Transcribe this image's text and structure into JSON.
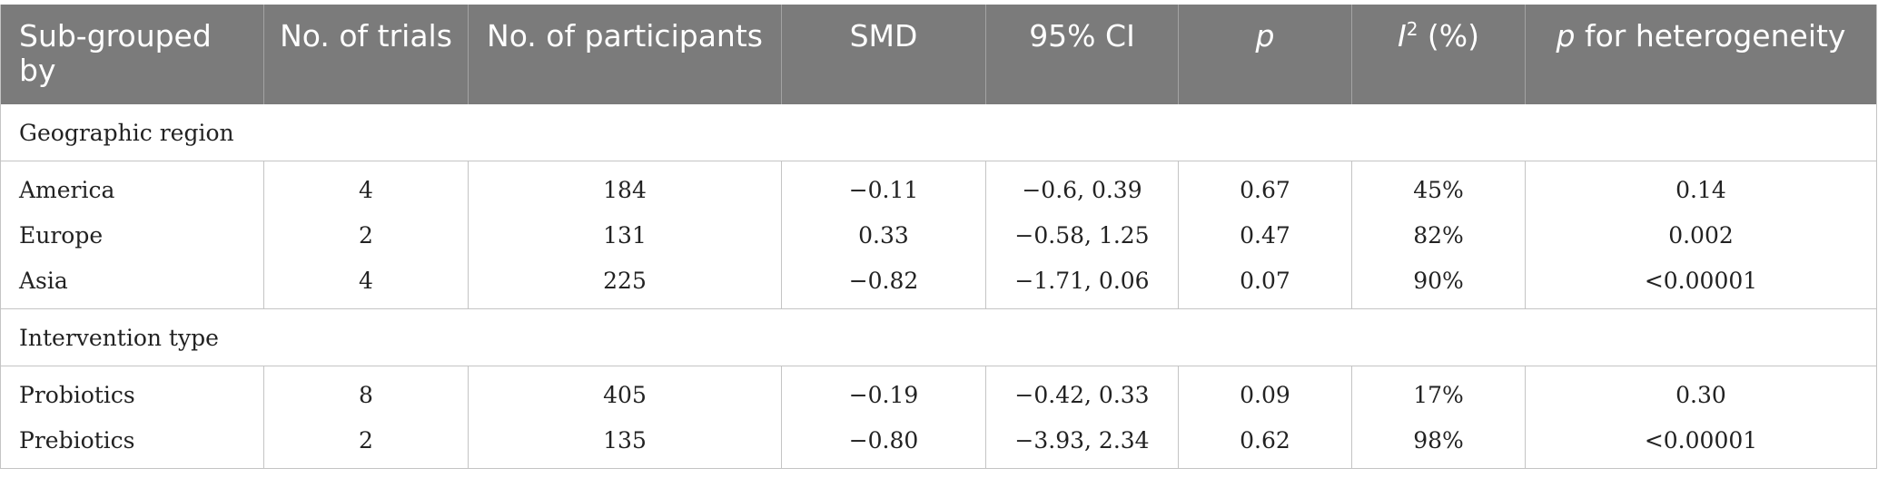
{
  "table": {
    "headers": {
      "subgroup": "Sub-grouped by",
      "trials": "No. of trials",
      "participants": "No. of participants",
      "smd": "SMD",
      "ci": "95% CI",
      "p": "p",
      "i2_letter": "I",
      "i2_sup": "2",
      "i2_rest": " (%)",
      "p_het_italic": "p",
      "p_het_rest": " for heterogeneity"
    },
    "groups": [
      {
        "label": "Geographic region",
        "rows": [
          {
            "name": "America",
            "trials": "4",
            "participants": "184",
            "smd": "−0.11",
            "ci": "−0.6, 0.39",
            "p": "0.67",
            "i2": "45%",
            "p_het": "0.14"
          },
          {
            "name": "Europe",
            "trials": "2",
            "participants": "131",
            "smd": "0.33",
            "ci": "−0.58, 1.25",
            "p": "0.47",
            "i2": "82%",
            "p_het": "0.002"
          },
          {
            "name": "Asia",
            "trials": "4",
            "participants": "225",
            "smd": "−0.82",
            "ci": "−1.71, 0.06",
            "p": "0.07",
            "i2": "90%",
            "p_het": "<0.00001"
          }
        ]
      },
      {
        "label": "Intervention type",
        "rows": [
          {
            "name": "Probiotics",
            "trials": "8",
            "participants": "405",
            "smd": "−0.19",
            "ci": "−0.42, 0.33",
            "p": "0.09",
            "i2": "17%",
            "p_het": "0.30"
          },
          {
            "name": "Prebiotics",
            "trials": "2",
            "participants": "135",
            "smd": "−0.80",
            "ci": "−3.93, 2.34",
            "p": "0.62",
            "i2": "98%",
            "p_het": "<0.00001"
          }
        ]
      }
    ]
  }
}
